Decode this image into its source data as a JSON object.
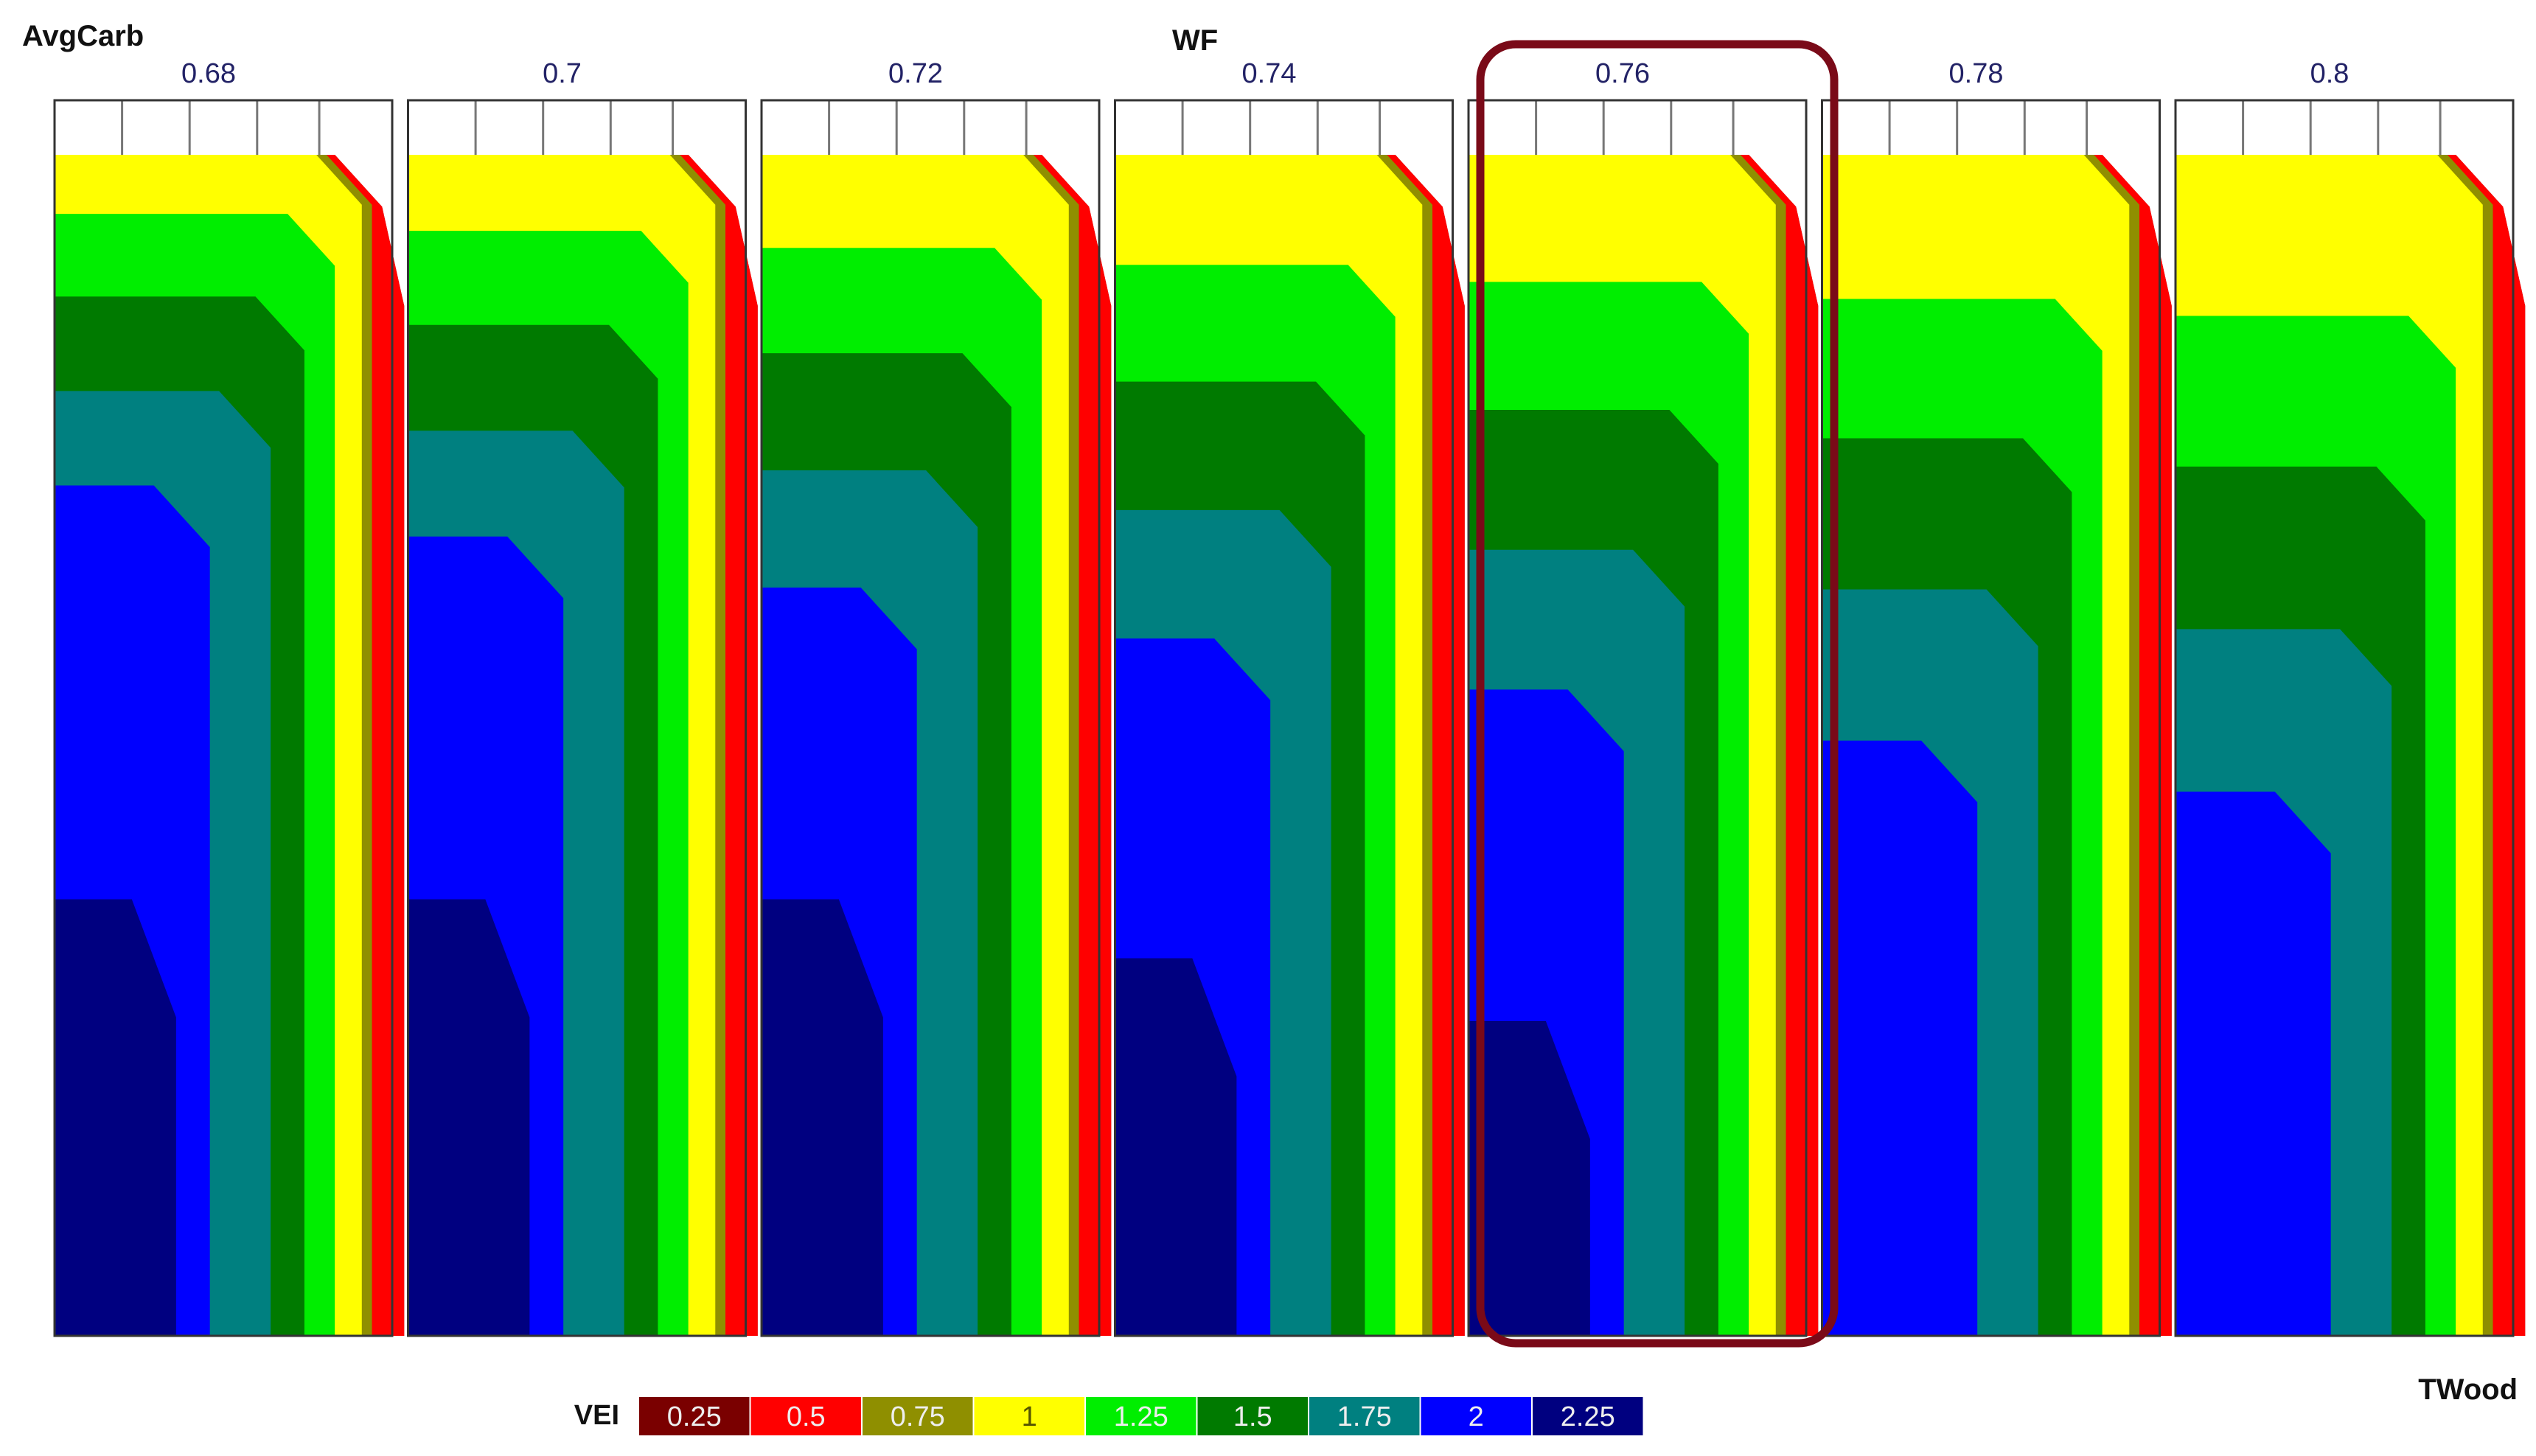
{
  "chart_data": {
    "type": "heatmap",
    "title": "",
    "row_variable": "AvgCarb",
    "column_variable": "WF",
    "x_variable": "TWood",
    "panel_values": [
      "0.68",
      "0.7",
      "0.72",
      "0.74",
      "0.76",
      "0.78",
      "0.8"
    ],
    "highlighted_panel": "0.76",
    "legend": {
      "title": "VEI",
      "levels": [
        "0.25",
        "0.5",
        "0.75",
        "1",
        "1.25",
        "1.5",
        "1.75",
        "2",
        "2.25"
      ],
      "colors": [
        "#7a0000",
        "#ff0000",
        "#8f8f00",
        "#ffff00",
        "#00ee00",
        "#007a00",
        "#008080",
        "#0000ff",
        "#000080"
      ]
    },
    "grid": true
  }
}
